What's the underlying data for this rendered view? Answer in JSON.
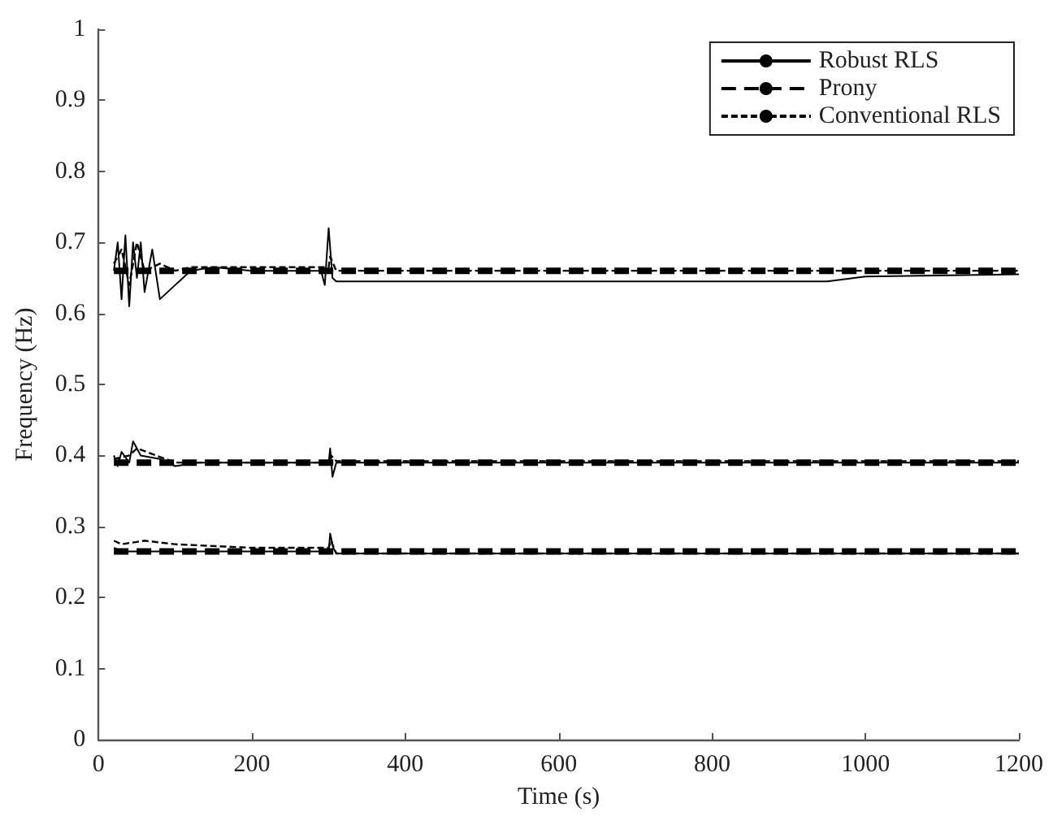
{
  "chart_data": {
    "type": "line",
    "xlabel": "Time (s)",
    "ylabel": "Frequency (Hz)",
    "xlim": [
      0,
      1200
    ],
    "xticks": [
      0,
      200,
      400,
      600,
      800,
      1000,
      1200
    ],
    "ylim": [
      0,
      1
    ],
    "yticks": [
      0,
      0.1,
      0.2,
      0.3,
      0.4,
      0.5,
      0.6,
      0.7,
      0.8,
      0.9,
      1
    ],
    "grid": false,
    "legend": "top right",
    "marker": "none",
    "series": [
      {
        "name": "Robust RLS",
        "color": "#000000",
        "line_style": "solid",
        "x": [
          20,
          25,
          30,
          35,
          40,
          45,
          50,
          55,
          60,
          70,
          80,
          90,
          100,
          110,
          120,
          150,
          200,
          290,
          295,
          300,
          305,
          310,
          400,
          600,
          950,
          1000,
          1200
        ],
        "values": [
          0.66,
          0.7,
          0.62,
          0.71,
          0.61,
          0.7,
          0.65,
          0.7,
          0.63,
          0.69,
          0.62,
          0.63,
          0.64,
          0.65,
          0.66,
          0.665,
          0.66,
          0.66,
          0.64,
          0.72,
          0.65,
          0.645,
          0.645,
          0.645,
          0.645,
          0.652,
          0.655
        ]
      },
      {
        "name": "Prony",
        "color": "#000000",
        "line_style": "dashed",
        "x": [
          20,
          1200
        ],
        "values": [
          0.66,
          0.66
        ]
      },
      {
        "name": "Conventional RLS",
        "color": "#000000",
        "line_style": "dotted",
        "x": [
          20,
          30,
          40,
          50,
          60,
          80,
          100,
          120,
          300,
          302,
          310,
          1200
        ],
        "values": [
          0.67,
          0.69,
          0.64,
          0.7,
          0.66,
          0.67,
          0.66,
          0.665,
          0.665,
          0.68,
          0.66,
          0.66
        ]
      },
      {
        "color": "#000000",
        "line_style": "solid",
        "x": [
          20,
          25,
          30,
          40,
          45,
          55,
          80,
          100,
          130,
          300,
          302,
          305,
          310,
          1200
        ],
        "values": [
          0.4,
          0.385,
          0.405,
          0.39,
          0.42,
          0.4,
          0.395,
          0.385,
          0.39,
          0.39,
          0.41,
          0.37,
          0.39,
          0.39
        ]
      },
      {
        "color": "#000000",
        "line_style": "dashed",
        "x": [
          20,
          1200
        ],
        "values": [
          0.39,
          0.39
        ]
      },
      {
        "color": "#000000",
        "line_style": "dotted",
        "x": [
          20,
          40,
          50,
          100,
          300,
          303,
          310,
          1200
        ],
        "values": [
          0.395,
          0.4,
          0.41,
          0.39,
          0.39,
          0.4,
          0.392,
          0.392
        ]
      },
      {
        "color": "#000000",
        "line_style": "solid",
        "x": [
          20,
          30,
          300,
          302,
          306,
          310,
          1200
        ],
        "values": [
          0.27,
          0.265,
          0.265,
          0.29,
          0.27,
          0.262,
          0.262
        ]
      },
      {
        "color": "#000000",
        "line_style": "dashed",
        "x": [
          20,
          1200
        ],
        "values": [
          0.265,
          0.265
        ]
      },
      {
        "color": "#000000",
        "line_style": "dotted",
        "x": [
          20,
          30,
          60,
          100,
          200,
          300,
          303,
          310,
          1200
        ],
        "values": [
          0.28,
          0.275,
          0.28,
          0.275,
          0.27,
          0.27,
          0.28,
          0.262,
          0.262
        ]
      }
    ]
  }
}
